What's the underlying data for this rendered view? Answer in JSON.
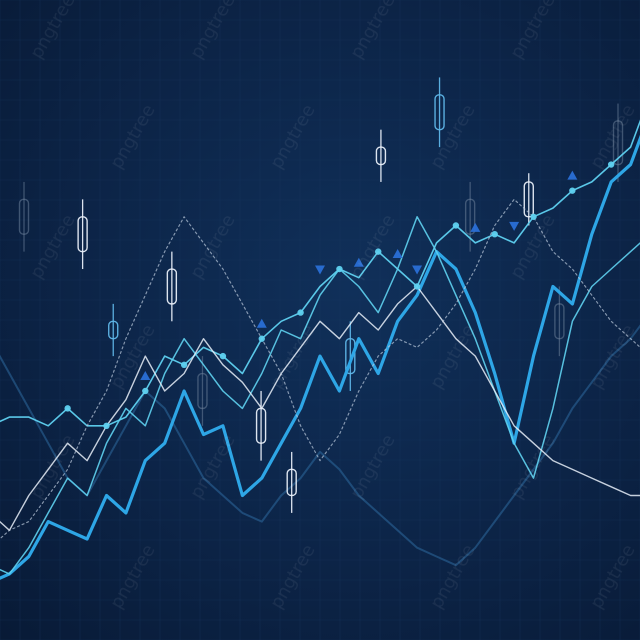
{
  "chart_data": {
    "type": "line",
    "title": "",
    "xlabel": "",
    "ylabel": "",
    "grid": true,
    "legend": "none",
    "colors": {
      "background": "#0c2447",
      "grid": "#1b3a63",
      "bright_line": "#5fd1f0",
      "accent_line": "#2ea6e6",
      "white_line": "#e8eef8",
      "dotted_line": "#b9c7da",
      "faded_line": "#2d6a9f",
      "marker_triangle": "#2a6fd6",
      "candle_white": "#e8eef8",
      "candle_blue": "#5fb6e8",
      "candle_faded": "#6b7f99"
    },
    "series": [
      {
        "style": "main-markers",
        "values": [
          20,
          21,
          21,
          20,
          22,
          20,
          20,
          21,
          24,
          28,
          27,
          29,
          28,
          26,
          30,
          32,
          33,
          36,
          38,
          37,
          40,
          38,
          36,
          41,
          43,
          41,
          42,
          41,
          44,
          45,
          47,
          48,
          50,
          52,
          58
        ]
      },
      {
        "style": "bright",
        "values": [
          2,
          3,
          5,
          9,
          8,
          7,
          12,
          10,
          16,
          18,
          24,
          19,
          20,
          12,
          14,
          18,
          22,
          28,
          24,
          30,
          26,
          32,
          35,
          40,
          38,
          33,
          26,
          18,
          28,
          36,
          34,
          42,
          48,
          50,
          56
        ]
      },
      {
        "style": "accent",
        "values": [
          4,
          3,
          6,
          10,
          14,
          12,
          18,
          22,
          20,
          26,
          30,
          27,
          24,
          22,
          26,
          31,
          30,
          35,
          38,
          36,
          33,
          38,
          44,
          40,
          35,
          30,
          24,
          18,
          14,
          22,
          32,
          36,
          38,
          40,
          42
        ]
      },
      {
        "style": "white",
        "values": [
          10,
          8,
          12,
          15,
          18,
          16,
          20,
          23,
          28,
          24,
          26,
          30,
          27,
          25,
          22,
          26,
          29,
          32,
          30,
          33,
          31,
          34,
          36,
          33,
          30,
          28,
          24,
          20,
          18,
          16,
          15,
          14,
          13,
          12,
          12
        ]
      },
      {
        "style": "dotted",
        "values": [
          6,
          8,
          9,
          12,
          15,
          20,
          24,
          30,
          35,
          40,
          44,
          41,
          38,
          34,
          30,
          26,
          20,
          16,
          19,
          24,
          28,
          30,
          29,
          31,
          34,
          38,
          43,
          46,
          44,
          40,
          38,
          35,
          32,
          30,
          28
        ]
      },
      {
        "style": "faded",
        "values": [
          30,
          26,
          22,
          18,
          14,
          12,
          16,
          20,
          24,
          22,
          18,
          14,
          12,
          10,
          9,
          12,
          14,
          17,
          15,
          12,
          10,
          8,
          6,
          5,
          4,
          6,
          9,
          12,
          15,
          18,
          22,
          25,
          28,
          30,
          33
        ]
      }
    ],
    "candles": [
      {
        "color": "faded",
        "open": 42,
        "close": 46,
        "high": 48,
        "low": 40
      },
      {
        "color": "white",
        "open": 40,
        "close": 44,
        "high": 46,
        "low": 38
      },
      {
        "color": "blue",
        "open": 32,
        "close": 30,
        "high": 34,
        "low": 28
      },
      {
        "color": "white",
        "open": 34,
        "close": 38,
        "high": 40,
        "low": 32
      },
      {
        "color": "faded",
        "open": 22,
        "close": 26,
        "high": 28,
        "low": 20
      },
      {
        "color": "white",
        "open": 18,
        "close": 22,
        "high": 24,
        "low": 16
      },
      {
        "color": "white",
        "open": 12,
        "close": 15,
        "high": 17,
        "low": 10
      },
      {
        "color": "blue",
        "open": 26,
        "close": 30,
        "high": 32,
        "low": 24
      },
      {
        "color": "white",
        "open": 50,
        "close": 52,
        "high": 54,
        "low": 48
      },
      {
        "color": "blue",
        "open": 54,
        "close": 58,
        "high": 60,
        "low": 52
      },
      {
        "color": "faded",
        "open": 42,
        "close": 46,
        "high": 48,
        "low": 40
      },
      {
        "color": "white",
        "open": 44,
        "close": 48,
        "high": 49,
        "low": 43
      },
      {
        "color": "faded",
        "open": 30,
        "close": 34,
        "high": 36,
        "low": 28
      },
      {
        "color": "faded",
        "open": 50,
        "close": 55,
        "high": 57,
        "low": 48
      }
    ],
    "markers": [
      {
        "index": 8,
        "shape": "triangle-up"
      },
      {
        "index": 14,
        "shape": "triangle-up"
      },
      {
        "index": 17,
        "shape": "triangle-down"
      },
      {
        "index": 19,
        "shape": "triangle-up"
      },
      {
        "index": 21,
        "shape": "triangle-up"
      },
      {
        "index": 22,
        "shape": "triangle-down"
      },
      {
        "index": 25,
        "shape": "triangle-up"
      },
      {
        "index": 27,
        "shape": "triangle-down"
      },
      {
        "index": 30,
        "shape": "triangle-up"
      }
    ]
  },
  "watermark": {
    "text": "pngtree"
  }
}
